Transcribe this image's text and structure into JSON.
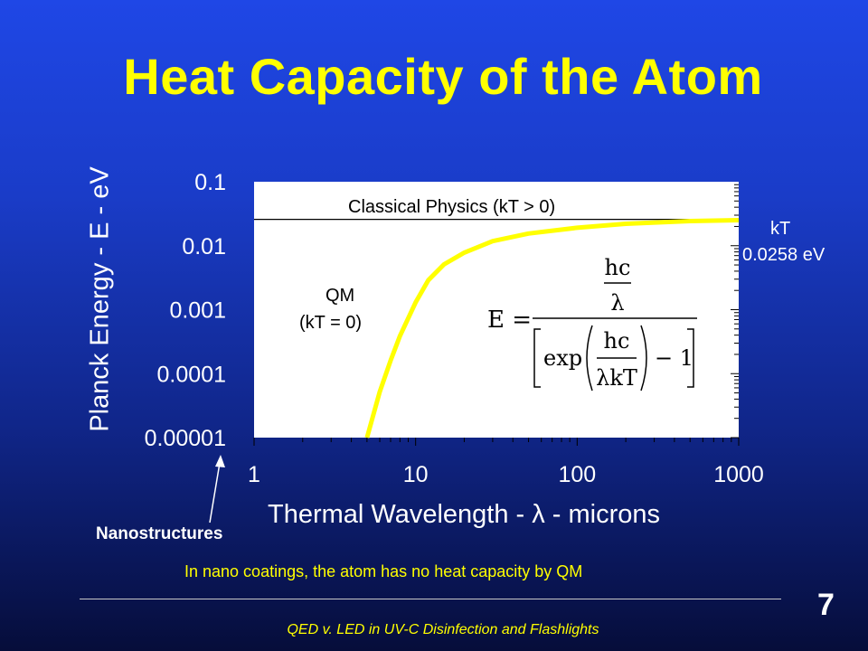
{
  "slide": {
    "title": "Heat Capacity of the Atom",
    "nanostructures_label": "Nanostructures",
    "note": "In nano coatings, the atom has no heat capacity by QM",
    "page_number": "7",
    "footer": "QED v. LED in UV-C Disinfection  and Flashlights"
  },
  "colors": {
    "title": "#ffff00",
    "curve": "#ffff00",
    "plot_bg": "#ffffff",
    "text": "#ffffff"
  },
  "chart_data": {
    "type": "line",
    "title": "",
    "xlabel": "Thermal Wavelength - λ - microns",
    "ylabel": "Planck Energy - E - eV",
    "x_scale": "log",
    "y_scale": "log",
    "xlim": [
      1,
      1000
    ],
    "ylim": [
      1e-05,
      0.1
    ],
    "x_ticks": [
      "1",
      "10",
      "100",
      "1000"
    ],
    "y_ticks": [
      "0.1",
      "0.01",
      "0.001",
      "0.0001",
      "0.00001"
    ],
    "grid": false,
    "series": [
      {
        "name": "",
        "x": [
          5,
          6,
          7,
          8,
          10,
          12,
          15,
          20,
          30,
          50,
          100,
          200,
          500,
          1000
        ],
        "y": [
          1e-05,
          5.2e-05,
          0.00016,
          0.00039,
          0.0013,
          0.0029,
          0.0051,
          0.0078,
          0.0118,
          0.0155,
          0.0191,
          0.022,
          0.0243,
          0.0251
        ]
      }
    ],
    "reference_line": {
      "label": "Classical Physics (kT > 0)",
      "y": 0.0258
    },
    "annotations": {
      "qm_line1": "QM",
      "qm_line2": "(kT = 0)",
      "kt_line1": "kT",
      "kt_line2": "0.0258 eV"
    },
    "formula": {
      "lhs": "E =",
      "num_top": "hc",
      "num_bottom": "λ",
      "exp": "exp",
      "inner_top": "hc",
      "inner_bottom": "λkT",
      "minus_one": "− 1"
    }
  }
}
